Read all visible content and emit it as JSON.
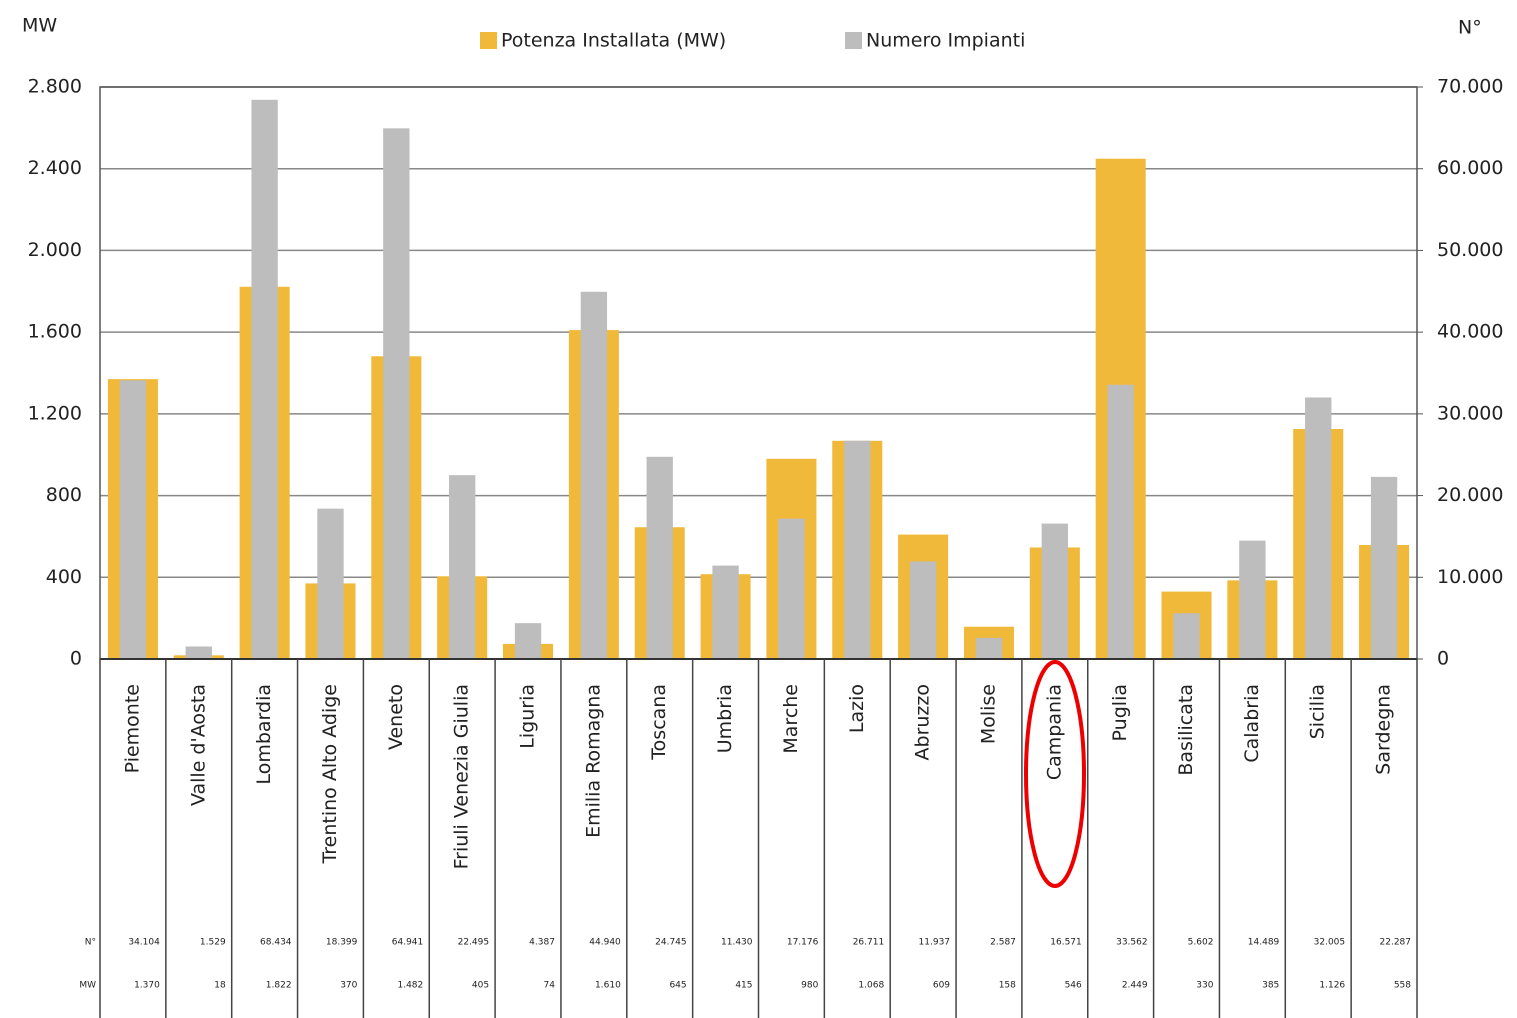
{
  "chart_data": {
    "type": "bar",
    "ylabel": "MW",
    "y2label": "N°",
    "categories": [
      "Piemonte",
      "Valle d'Aosta",
      "Lombardia",
      "Trentino Alto Adige",
      "Veneto",
      "Friuli Venezia Giulia",
      "Liguria",
      "Emilia Romagna",
      "Toscana",
      "Umbria",
      "Marche",
      "Lazio",
      "Abruzzo",
      "Molise",
      "Campania",
      "Puglia",
      "Basilicata",
      "Calabria",
      "Sicilia",
      "Sardegna"
    ],
    "series": [
      {
        "name": "Potenza Installata (MW)",
        "color": "#f0b93a",
        "values": [
          1370,
          18,
          1822,
          370,
          1482,
          405,
          74,
          1610,
          645,
          415,
          980,
          1068,
          609,
          158,
          546,
          2449,
          330,
          385,
          1126,
          558
        ],
        "value_labels": [
          "1.370",
          "18",
          "1.822",
          "370",
          "1.482",
          "405",
          "74",
          "1.610",
          "645",
          "415",
          "980",
          "1.068",
          "609",
          "158",
          "546",
          "2.449",
          "330",
          "385",
          "1.126",
          "558"
        ]
      },
      {
        "name": "Numero Impianti",
        "color": "#bdbdbd",
        "axis": "y2",
        "values": [
          34104,
          1529,
          68434,
          18399,
          64941,
          22495,
          4387,
          44940,
          24745,
          11430,
          17176,
          26711,
          11937,
          2587,
          16571,
          33562,
          5602,
          14489,
          32005,
          22287
        ],
        "value_labels": [
          "34.104",
          "1.529",
          "68.434",
          "18.399",
          "64.941",
          "22.495",
          "4.387",
          "44.940",
          "24.745",
          "11.430",
          "17.176",
          "26.711",
          "11.937",
          "2.587",
          "16.571",
          "33.562",
          "5.602",
          "14.489",
          "32.005",
          "22.287"
        ]
      }
    ],
    "ylim": [
      0,
      2800
    ],
    "yticks": [
      0,
      400,
      800,
      {
        "value": 1200,
        "label": "1.200"
      },
      {
        "value": 1600,
        "label": "1.600"
      },
      {
        "value": 2000,
        "label": "2.000"
      },
      {
        "value": 2400,
        "label": "2.400"
      },
      {
        "value": 2800,
        "label": "2.800"
      }
    ],
    "y2lim": [
      0,
      70000
    ],
    "y2ticks": [
      0,
      {
        "value": 10000,
        "label": "10.000"
      },
      {
        "value": 20000,
        "label": "20.000"
      },
      {
        "value": 30000,
        "label": "30.000"
      },
      {
        "value": 40000,
        "label": "40.000"
      },
      {
        "value": 50000,
        "label": "50.000"
      },
      {
        "value": 60000,
        "label": "60.000"
      },
      {
        "value": 70000,
        "label": "70.000"
      }
    ],
    "grid": true,
    "legend": "top"
  }
}
